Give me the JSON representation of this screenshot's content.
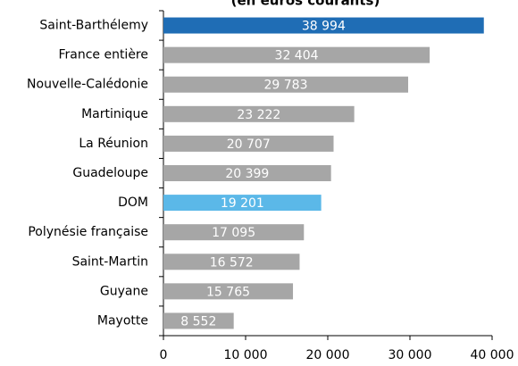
{
  "chart_data": {
    "type": "hbar",
    "title": "(en euros courants)",
    "categories": [
      "Saint-Barthélemy",
      "France entière",
      "Nouvelle-Calédonie",
      "Martinique",
      "La Réunion",
      "Guadeloupe",
      "DOM",
      "Polynésie française",
      "Saint-Martin",
      "Guyane",
      "Mayotte"
    ],
    "values": [
      38994,
      32404,
      29783,
      23222,
      20707,
      20399,
      19201,
      17095,
      16572,
      15765,
      8552
    ],
    "value_labels": [
      "38 994",
      "32 404",
      "29 783",
      "23 222",
      "20 707",
      "20 399",
      "19 201",
      "17 095",
      "16 572",
      "15 765",
      "8 552"
    ],
    "colors": [
      "#1f6db5",
      "#a6a6a6",
      "#a6a6a6",
      "#a6a6a6",
      "#a6a6a6",
      "#a6a6a6",
      "#5bb8e8",
      "#a6a6a6",
      "#a6a6a6",
      "#a6a6a6",
      "#a6a6a6"
    ],
    "xlim": [
      0,
      40000
    ],
    "xticks": [
      0,
      {
        "value": 10000,
        "label": "10 000"
      },
      {
        "value": 20000,
        "label": "20 000"
      },
      {
        "value": 30000,
        "label": "30 000"
      },
      {
        "value": 40000,
        "label": "40 000"
      }
    ],
    "grid": false
  }
}
